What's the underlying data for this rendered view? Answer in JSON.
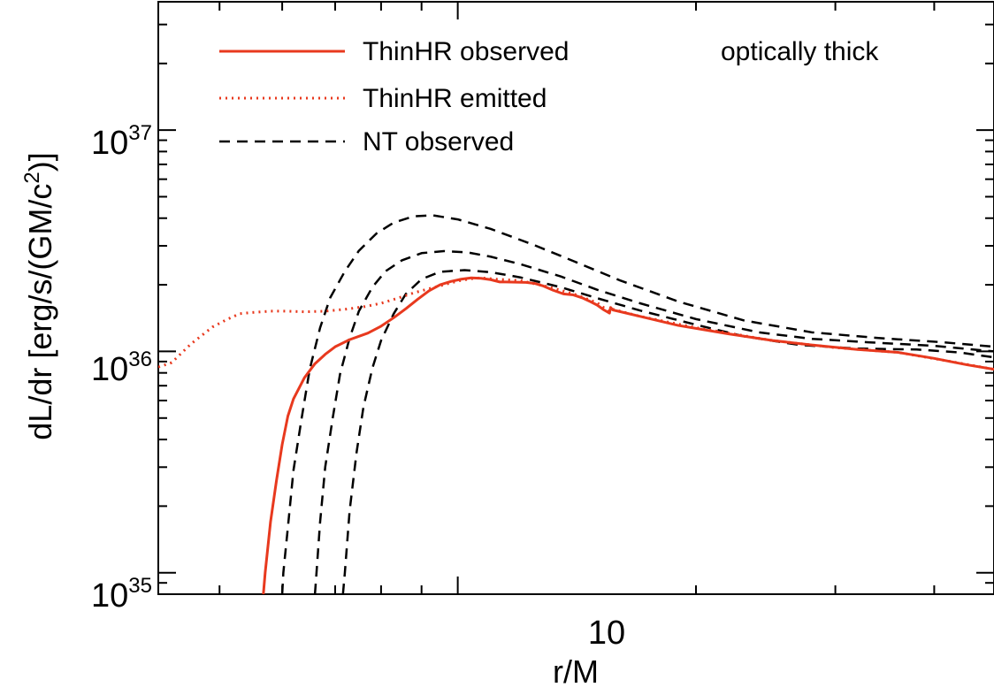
{
  "chart_data": {
    "type": "line",
    "xlabel": "r/M",
    "ylabel_main": "dL/dr  [erg/s/(GM/c",
    "ylabel_sup": "2",
    "ylabel_end": ")]",
    "xscale": "log",
    "yscale": "log",
    "xlim": [
      4.184,
      47.6
    ],
    "ylim": [
      8e+34,
      3.8e+37
    ],
    "x_ticks": [
      {
        "value": 10,
        "label": "10"
      }
    ],
    "y_ticks": [
      {
        "value": 1e+35,
        "base": "10",
        "exp": "35"
      },
      {
        "value": 1e+36,
        "base": "10",
        "exp": "36"
      },
      {
        "value": 1e+37,
        "base": "10",
        "exp": "37"
      }
    ],
    "annotation": "optically thick",
    "legend_position": "top-left",
    "series": [
      {
        "name": "ThinHR observed",
        "style": "solid",
        "color": "#e8391e",
        "points": [
          [
            5.68,
            8e+34
          ],
          [
            5.71,
            1e+35
          ],
          [
            5.8,
            1.7e+35
          ],
          [
            5.9,
            2.6e+35
          ],
          [
            6.0,
            3.8e+35
          ],
          [
            6.1,
            5.1e+35
          ],
          [
            6.2,
            6.1e+35
          ],
          [
            6.4,
            7.6e+35
          ],
          [
            6.6,
            8.8e+35
          ],
          [
            6.8,
            9.7e+35
          ],
          [
            7.0,
            1.05e+36
          ],
          [
            7.3,
            1.13e+36
          ],
          [
            7.7,
            1.21e+36
          ],
          [
            8.0,
            1.3e+36
          ],
          [
            8.3,
            1.42e+36
          ],
          [
            8.6,
            1.56e+36
          ],
          [
            8.9,
            1.72e+36
          ],
          [
            9.2,
            1.88e+36
          ],
          [
            9.5,
            2e+36
          ],
          [
            9.8,
            2.07e+36
          ],
          [
            10.1,
            2.12e+36
          ],
          [
            10.4,
            2.15e+36
          ],
          [
            10.7,
            2.14e+36
          ],
          [
            11.0,
            2.11e+36
          ],
          [
            11.3,
            2.06e+36
          ],
          [
            11.5,
            2.06e+36
          ],
          [
            12.2,
            2.05e+36
          ],
          [
            12.5,
            2.03e+36
          ],
          [
            12.8,
            1.98e+36
          ],
          [
            13.2,
            1.89e+36
          ],
          [
            13.6,
            1.82e+36
          ],
          [
            14.0,
            1.8e+36
          ],
          [
            14.4,
            1.74e+36
          ],
          [
            14.7,
            1.68e+36
          ],
          [
            15.0,
            1.62e+36
          ],
          [
            15.3,
            1.54e+36
          ],
          [
            15.55,
            1.49e+36
          ],
          [
            15.6,
            1.58e+36
          ],
          [
            15.7,
            1.54e+36
          ],
          [
            17.0,
            1.44e+36
          ],
          [
            19.0,
            1.31e+36
          ],
          [
            22.0,
            1.2e+36
          ],
          [
            25.0,
            1.12e+36
          ],
          [
            28.0,
            1.07e+36
          ],
          [
            32.0,
            1.02e+36
          ],
          [
            36.0,
            9.9e+35
          ],
          [
            40.0,
            9.3e+35
          ],
          [
            44.0,
            8.7e+35
          ],
          [
            47.6,
            8.3e+35
          ]
        ]
      },
      {
        "name": "ThinHR emitted",
        "style": "dotted",
        "color": "#e8391e",
        "points": [
          [
            4.184,
            8.5e+35
          ],
          [
            4.35,
            8.9e+35
          ],
          [
            4.6,
            1.08e+36
          ],
          [
            4.9,
            1.29e+36
          ],
          [
            5.1,
            1.39e+36
          ],
          [
            5.3,
            1.48e+36
          ],
          [
            5.5,
            1.5e+36
          ],
          [
            5.8,
            1.52e+36
          ],
          [
            6.1,
            1.52e+36
          ],
          [
            6.4,
            1.51e+36
          ],
          [
            6.8,
            1.52e+36
          ],
          [
            7.2,
            1.55e+36
          ],
          [
            7.6,
            1.59e+36
          ],
          [
            8.0,
            1.65e+36
          ],
          [
            8.4,
            1.74e+36
          ],
          [
            8.8,
            1.84e+36
          ],
          [
            9.2,
            1.92e+36
          ],
          [
            9.6,
            2e+36
          ],
          [
            10.0,
            2.08e+36
          ],
          [
            10.4,
            2.13e+36
          ],
          [
            10.7,
            2.15e+36
          ],
          [
            11.2,
            2.12e+36
          ],
          [
            12.0,
            2.09e+36
          ],
          [
            13.0,
            1.96e+36
          ],
          [
            14.0,
            1.82e+36
          ],
          [
            15.0,
            1.66e+36
          ],
          [
            15.55,
            1.51e+36
          ],
          [
            15.7,
            1.55e+36
          ],
          [
            17.0,
            1.44e+36
          ],
          [
            20.0,
            1.28e+36
          ],
          [
            25.0,
            1.12e+36
          ],
          [
            30.0,
            1.04e+36
          ],
          [
            36.0,
            9.9e+35
          ],
          [
            42.0,
            9e+35
          ],
          [
            47.6,
            8.3e+35
          ]
        ]
      },
      {
        "name": "NT observed",
        "style": "dashed",
        "color": "#000000",
        "points": [
          [
            7.16,
            8e+34
          ],
          [
            7.2,
            1e+35
          ],
          [
            7.3,
            1.9e+35
          ],
          [
            7.45,
            3.5e+35
          ],
          [
            7.6,
            5.6e+35
          ],
          [
            7.8,
            8.4e+35
          ],
          [
            8.0,
            1.12e+36
          ],
          [
            8.3,
            1.48e+36
          ],
          [
            8.6,
            1.82e+36
          ],
          [
            9.0,
            2.12e+36
          ],
          [
            9.5,
            2.29e+36
          ],
          [
            10.2,
            2.33e+36
          ],
          [
            11.0,
            2.28e+36
          ],
          [
            12.0,
            2.16e+36
          ],
          [
            13.5,
            1.95e+36
          ],
          [
            15.0,
            1.74e+36
          ],
          [
            17.0,
            1.53e+36
          ],
          [
            20.0,
            1.32e+36
          ],
          [
            23.0,
            1.17e+36
          ],
          [
            27.0,
            1.07e+36
          ],
          [
            32.0,
            1.03e+36
          ],
          [
            38.0,
            1.02e+36
          ],
          [
            43.0,
            9.9e+35
          ],
          [
            47.6,
            9.4e+35
          ]
        ]
      },
      {
        "name": "NT observed",
        "style": "dashed",
        "color": "#000000",
        "points": [
          [
            6.6,
            8e+34
          ],
          [
            6.63,
            1e+35
          ],
          [
            6.7,
            1.7e+35
          ],
          [
            6.8,
            3e+35
          ],
          [
            6.95,
            5e+35
          ],
          [
            7.1,
            7.9e+35
          ],
          [
            7.3,
            1.15e+36
          ],
          [
            7.5,
            1.52e+36
          ],
          [
            7.8,
            1.95e+36
          ],
          [
            8.1,
            2.3e+36
          ],
          [
            8.5,
            2.58e+36
          ],
          [
            9.0,
            2.78e+36
          ],
          [
            9.6,
            2.84e+36
          ],
          [
            10.3,
            2.8e+36
          ],
          [
            11.0,
            2.68e+36
          ],
          [
            12.0,
            2.48e+36
          ],
          [
            13.5,
            2.18e+36
          ],
          [
            15.0,
            1.9e+36
          ],
          [
            17.0,
            1.65e+36
          ],
          [
            20.0,
            1.4e+36
          ],
          [
            24.0,
            1.22e+36
          ],
          [
            28.0,
            1.14e+36
          ],
          [
            33.0,
            1.1e+36
          ],
          [
            40.0,
            1.06e+36
          ],
          [
            47.6,
            1e+36
          ]
        ]
      },
      {
        "name": "NT observed",
        "style": "dashed",
        "color": "#000000",
        "points": [
          [
            6.0,
            8e+34
          ],
          [
            6.02,
            1e+35
          ],
          [
            6.1,
            1.6e+35
          ],
          [
            6.2,
            2.9e+35
          ],
          [
            6.35,
            5e+35
          ],
          [
            6.5,
            8.3e+35
          ],
          [
            6.7,
            1.28e+36
          ],
          [
            6.9,
            1.75e+36
          ],
          [
            7.2,
            2.3e+36
          ],
          [
            7.5,
            2.85e+36
          ],
          [
            7.9,
            3.42e+36
          ],
          [
            8.3,
            3.82e+36
          ],
          [
            8.8,
            4.08e+36
          ],
          [
            9.3,
            4.12e+36
          ],
          [
            10.0,
            3.95e+36
          ],
          [
            11.0,
            3.58e+36
          ],
          [
            12.5,
            3.02e+36
          ],
          [
            14.0,
            2.56e+36
          ],
          [
            16.0,
            2.1e+36
          ],
          [
            19.0,
            1.68e+36
          ],
          [
            23.0,
            1.38e+36
          ],
          [
            28.0,
            1.22e+36
          ],
          [
            34.0,
            1.15e+36
          ],
          [
            41.0,
            1.1e+36
          ],
          [
            47.6,
            1.05e+36
          ]
        ]
      }
    ]
  }
}
